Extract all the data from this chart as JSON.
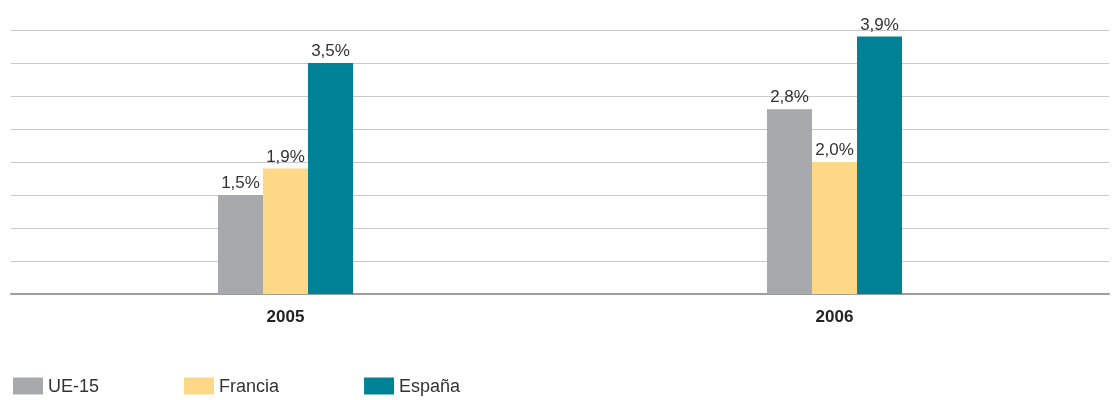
{
  "chart_data": {
    "type": "bar",
    "categories": [
      "2005",
      "2006"
    ],
    "series": [
      {
        "name": "UE-15",
        "color": "#a7a9ac",
        "values": [
          1.5,
          2.8
        ],
        "value_labels": [
          "1,5%",
          "2,8%"
        ]
      },
      {
        "name": "Francia",
        "color": "#fdd886",
        "values": [
          1.9,
          2.0
        ],
        "value_labels": [
          "1,9%",
          "2,0%"
        ]
      },
      {
        "name": "España",
        "color": "#008196",
        "values": [
          3.5,
          3.9
        ],
        "value_labels": [
          "3,5%",
          "3,9%"
        ]
      }
    ],
    "ylim": [
      0,
      4
    ],
    "yticks": [
      {
        "value": 0,
        "label": null
      },
      {
        "value": 0.5,
        "label": null
      },
      {
        "value": 1,
        "label": null
      },
      {
        "value": 1.5,
        "label": null
      },
      {
        "value": 2,
        "label": null
      },
      {
        "value": 2.5,
        "label": null
      },
      {
        "value": 3,
        "label": null
      },
      {
        "value": 3.5,
        "label": null
      },
      {
        "value": 4,
        "label": null
      }
    ],
    "grid": "y",
    "legend": "bottom left"
  }
}
